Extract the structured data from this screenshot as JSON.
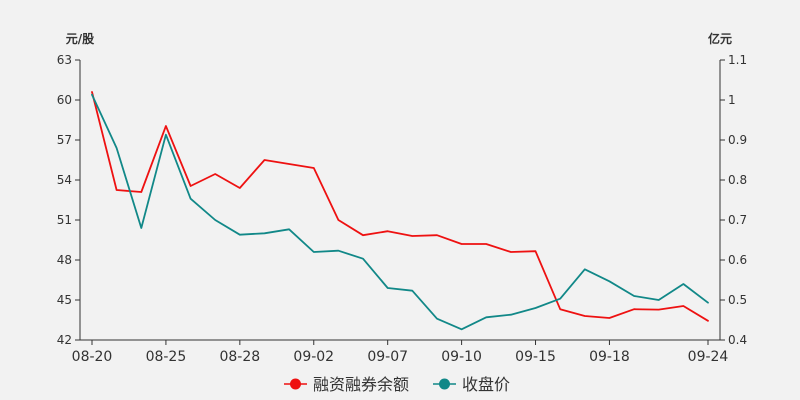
{
  "chart_data": {
    "type": "line",
    "left_unit": "元/股",
    "right_unit": "亿元",
    "x": [
      "08-20",
      "08-21",
      "08-24",
      "08-25",
      "08-26",
      "08-27",
      "08-28",
      "08-31",
      "09-01",
      "09-02",
      "09-03",
      "09-04",
      "09-07",
      "09-08",
      "09-09",
      "09-10",
      "09-11",
      "09-14",
      "09-15",
      "09-16",
      "09-17",
      "09-18",
      "09-21",
      "09-22",
      "09-23",
      "09-24"
    ],
    "x_tick_labels": [
      "08-20",
      "08-25",
      "08-28",
      "09-02",
      "09-07",
      "09-10",
      "09-15",
      "09-18",
      "09-24"
    ],
    "left_axis": {
      "min": 42,
      "max": 63,
      "ticks": [
        42,
        45,
        48,
        51,
        54,
        57,
        60,
        63
      ]
    },
    "right_axis": {
      "min": 0.4,
      "max": 1.1,
      "ticks": [
        "0.4",
        "0.5",
        "0.6",
        "0.7",
        "0.8",
        "0.9",
        "1",
        "1.1"
      ]
    },
    "series": [
      {
        "name": "融资融券余额",
        "axis": "right",
        "color": "#ee1111",
        "values": [
          1.02,
          0.775,
          0.77,
          0.935,
          0.785,
          0.815,
          0.78,
          0.85,
          0.84,
          0.83,
          0.7,
          0.662,
          0.672,
          0.66,
          0.662,
          0.64,
          0.64,
          0.62,
          0.622,
          0.477,
          0.46,
          0.455,
          0.477,
          0.476,
          0.485,
          0.448
        ]
      },
      {
        "name": "收盘价",
        "axis": "left",
        "color": "#118888",
        "values": [
          60.4,
          56.4,
          50.4,
          57.4,
          52.6,
          51.0,
          49.9,
          50.0,
          50.3,
          48.6,
          48.7,
          48.1,
          45.9,
          45.7,
          43.6,
          42.8,
          43.7,
          43.9,
          44.4,
          45.1,
          47.3,
          46.4,
          45.3,
          45.0,
          46.2,
          44.8
        ]
      }
    ],
    "legend_position": "bottom-center",
    "grid": false
  }
}
